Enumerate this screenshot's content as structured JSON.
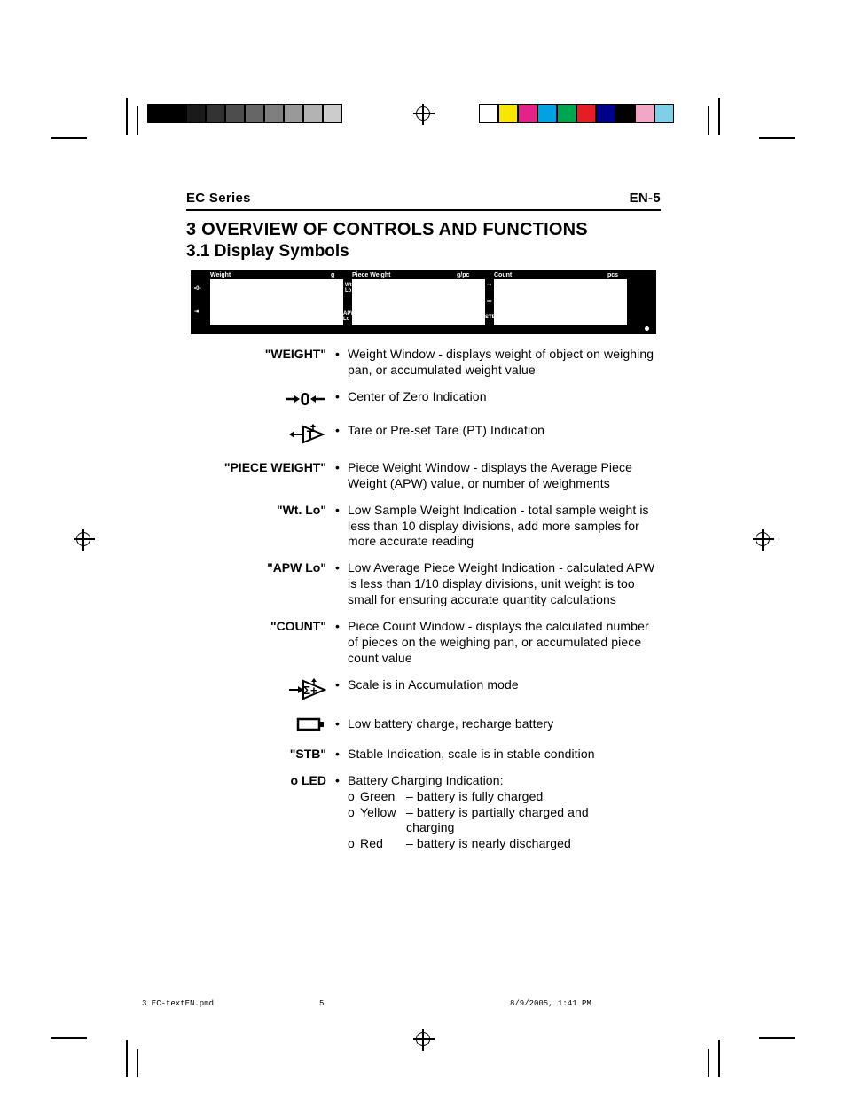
{
  "header": {
    "series": "EC Series",
    "page": "EN-5"
  },
  "title": "3 OVERVIEW OF CONTROLS AND FUNCTIONS",
  "subtitle": "3.1 Display Symbols",
  "panel": {
    "bg": "#000000",
    "screens": [
      {
        "label": "Weight",
        "unit": "g",
        "side_top": "→0←",
        "side_mid": "Wt.\nLo"
      },
      {
        "label": "Piece Weight",
        "unit": "g/pc",
        "side_bot": "APW\nLo"
      },
      {
        "label": "Count",
        "unit": "pcs",
        "side_top": "Σ",
        "side_mid": "▭",
        "side_bot": "STB"
      }
    ]
  },
  "rows": [
    {
      "label": "\"WEIGHT\"",
      "symbol": null,
      "desc": "Weight Window - displays weight of object on weighing pan, or accumulated weight value"
    },
    {
      "label": null,
      "symbol": "zero",
      "desc": "Center of Zero Indication"
    },
    {
      "label": null,
      "symbol": "tare",
      "desc": "Tare or Pre-set Tare (PT) Indication"
    },
    {
      "label": "\"PIECE WEIGHT\"",
      "symbol": null,
      "desc": "Piece Weight Window - displays the Average Piece Weight (APW) value, or number of weighments"
    },
    {
      "label": "\"Wt. Lo\"",
      "symbol": null,
      "desc": "Low Sample Weight Indication - total sample weight is less than 10 display divisions, add more samples for more accurate reading"
    },
    {
      "label": "\"APW Lo\"",
      "symbol": null,
      "desc": "Low Average Piece Weight Indication - calculated APW is less than 1/10 display divisions, unit weight is too small for ensuring accurate quantity calculations"
    },
    {
      "label": "\"COUNT\"",
      "symbol": null,
      "desc": "Piece Count Window - displays the calculated number of pieces on the weighing pan, or accumulated piece count value"
    },
    {
      "label": null,
      "symbol": "sigma",
      "desc": "Scale is in Accumulation mode"
    },
    {
      "label": null,
      "symbol": "battery",
      "desc": "Low battery charge, recharge battery"
    },
    {
      "label": "\"STB\"",
      "symbol": null,
      "desc": "Stable Indication, scale is in stable condition"
    },
    {
      "label": "o LED",
      "symbol": null,
      "desc": "Battery Charging Indication:",
      "led": [
        {
          "marker": "o",
          "color": "Green",
          "text": "– battery is fully charged"
        },
        {
          "marker": "o",
          "color": "Yellow",
          "text": "– battery is partially charged and"
        },
        {
          "marker": "",
          "color": "",
          "text": "charging",
          "indent": true
        },
        {
          "marker": "o",
          "color": "Red",
          "text": "– battery is nearly discharged"
        }
      ]
    }
  ],
  "footer": {
    "file": "3 EC-textEN.pmd",
    "page": "5",
    "date": "8/9/2005, 1:41 PM"
  },
  "swatches_left": [
    "#000000",
    "#000000",
    "#1a1a1a",
    "#333333",
    "#4d4d4d",
    "#666666",
    "#7f7f7f",
    "#999999",
    "#b3b3b3",
    "#cccccc"
  ],
  "swatches_right": [
    "#ffffff",
    "#f6e600",
    "#e32486",
    "#00a2e1",
    "#00a551",
    "#e31e24",
    "#00008b",
    "#000000",
    "#f4a6c9",
    "#7fd0e6"
  ]
}
